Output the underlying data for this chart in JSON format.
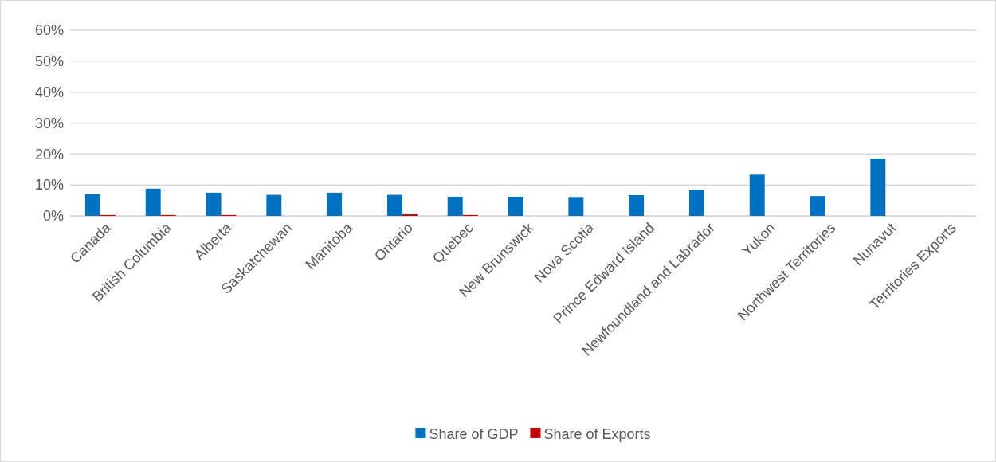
{
  "chart_data": {
    "type": "bar",
    "categories": [
      "Canada",
      "British Columbia",
      "Alberta",
      "Saskatchewan",
      "Manitoba",
      "Ontario",
      "Quebec",
      "New Brunswick",
      "Nova Scotia",
      "Prince Edward Island",
      "Newfoundland and Labrador",
      "Yukon",
      "Northwest Territories",
      "Nunavut",
      "Territories Exports"
    ],
    "series": [
      {
        "name": "Share of GDP",
        "color": "#0070c0",
        "values": [
          7.0,
          8.8,
          7.5,
          6.8,
          7.5,
          6.8,
          6.2,
          6.2,
          6.1,
          6.7,
          8.4,
          13.3,
          6.4,
          18.5,
          null
        ]
      },
      {
        "name": "Share of Exports",
        "color": "#c00000",
        "values": [
          0.3,
          0.3,
          0.3,
          0,
          0,
          0.5,
          0.3,
          0,
          0,
          0,
          0,
          0,
          0,
          0,
          null
        ]
      }
    ],
    "ylim": [
      0,
      60
    ],
    "yticks": [
      {
        "value": 0,
        "label": "0%"
      },
      {
        "value": 10,
        "label": "10%"
      },
      {
        "value": 20,
        "label": "20%"
      },
      {
        "value": 30,
        "label": "30%"
      },
      {
        "value": 40,
        "label": "40%"
      },
      {
        "value": 50,
        "label": "50%"
      },
      {
        "value": 60,
        "label": "60%"
      }
    ],
    "grid": "y",
    "legend": "bottom"
  }
}
